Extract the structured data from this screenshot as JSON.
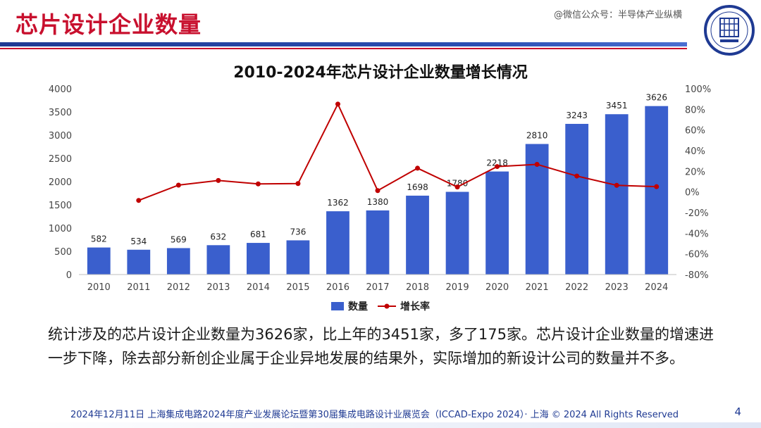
{
  "slide": {
    "title": "芯片设计企业数量",
    "watermark_top": "@微信公众号：半导体产业纵横",
    "page_number": "4",
    "footer": "2024年12月11日 上海集成电路2024年度产业发展论坛暨第30届集成电路设计业展览会（ICCAD-Expo 2024）· 上海 © 2024 All Rights Reserved",
    "paragraph": "统计涉及的芯片设计企业数量为3626家，比上年的3451家，多了175家。芯片设计企业数量的增速进一步下降，除去部分新创企业属于企业异地发展的结果外，实际增加的新设计公司的数量并不多。",
    "logo_icon": "iccad-logo-icon"
  },
  "colors": {
    "title_red": "#c8102e",
    "bar_blue": "#3a5fcd",
    "line_red": "#c00000",
    "rule_blue": "#1f3a93"
  },
  "chart_data": {
    "type": "bar",
    "title": "2010-2024年芯片设计企业数量增长情况",
    "categories": [
      "2010",
      "2011",
      "2012",
      "2013",
      "2014",
      "2015",
      "2016",
      "2017",
      "2018",
      "2019",
      "2020",
      "2021",
      "2022",
      "2023",
      "2024"
    ],
    "series": [
      {
        "name": "数量",
        "type": "bar",
        "axis": "left",
        "values": [
          582,
          534,
          569,
          632,
          681,
          736,
          1362,
          1380,
          1698,
          1780,
          2218,
          2810,
          3243,
          3451,
          3626
        ]
      },
      {
        "name": "增长率",
        "type": "line",
        "axis": "right",
        "values": [
          null,
          -8.2,
          6.6,
          11.1,
          7.8,
          8.1,
          85.1,
          1.3,
          23.0,
          4.8,
          24.6,
          26.7,
          15.4,
          6.4,
          5.1
        ]
      }
    ],
    "y_left": {
      "min": 0,
      "max": 4000,
      "ticks": [
        0,
        500,
        1000,
        1500,
        2000,
        2500,
        3000,
        3500,
        4000
      ]
    },
    "y_right": {
      "min": -80,
      "max": 100,
      "ticks": [
        "-80%",
        "-60%",
        "-40%",
        "-20%",
        "0%",
        "20%",
        "40%",
        "60%",
        "80%",
        "100%"
      ]
    },
    "legend": "bottom-center",
    "grid": false
  }
}
